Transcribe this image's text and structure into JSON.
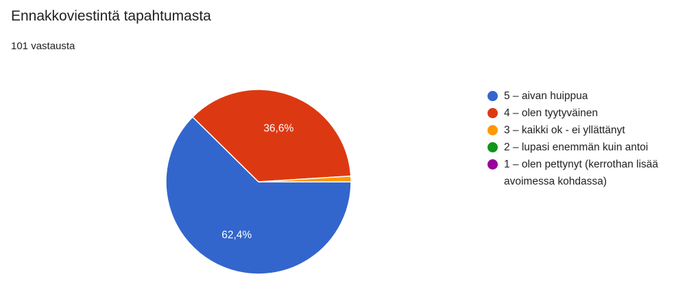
{
  "header": {
    "title": "Ennakkoviestintä tapahtumasta",
    "response_count": "101 vastausta"
  },
  "chart_data": {
    "type": "pie",
    "title": "Ennakkoviestintä tapahtumasta",
    "legend_position": "right",
    "slices": [
      {
        "label": "5 – aivan huippua",
        "value": 62.4,
        "display": "62,4%",
        "color": "#3366cc"
      },
      {
        "label": "4 – olen tyytyväinen",
        "value": 36.6,
        "display": "36,6%",
        "color": "#dc3912"
      },
      {
        "label": "3 – kaikki ok - ei yllättänyt",
        "value": 1.0,
        "display": "",
        "color": "#ff9900"
      },
      {
        "label": "2 – lupasi enemmän kuin antoi",
        "value": 0,
        "display": "",
        "color": "#109618"
      },
      {
        "label": "1 – olen pettynyt (kerrothan lisää avoimessa kohdassa)",
        "value": 0,
        "display": "",
        "color": "#990099"
      }
    ]
  }
}
